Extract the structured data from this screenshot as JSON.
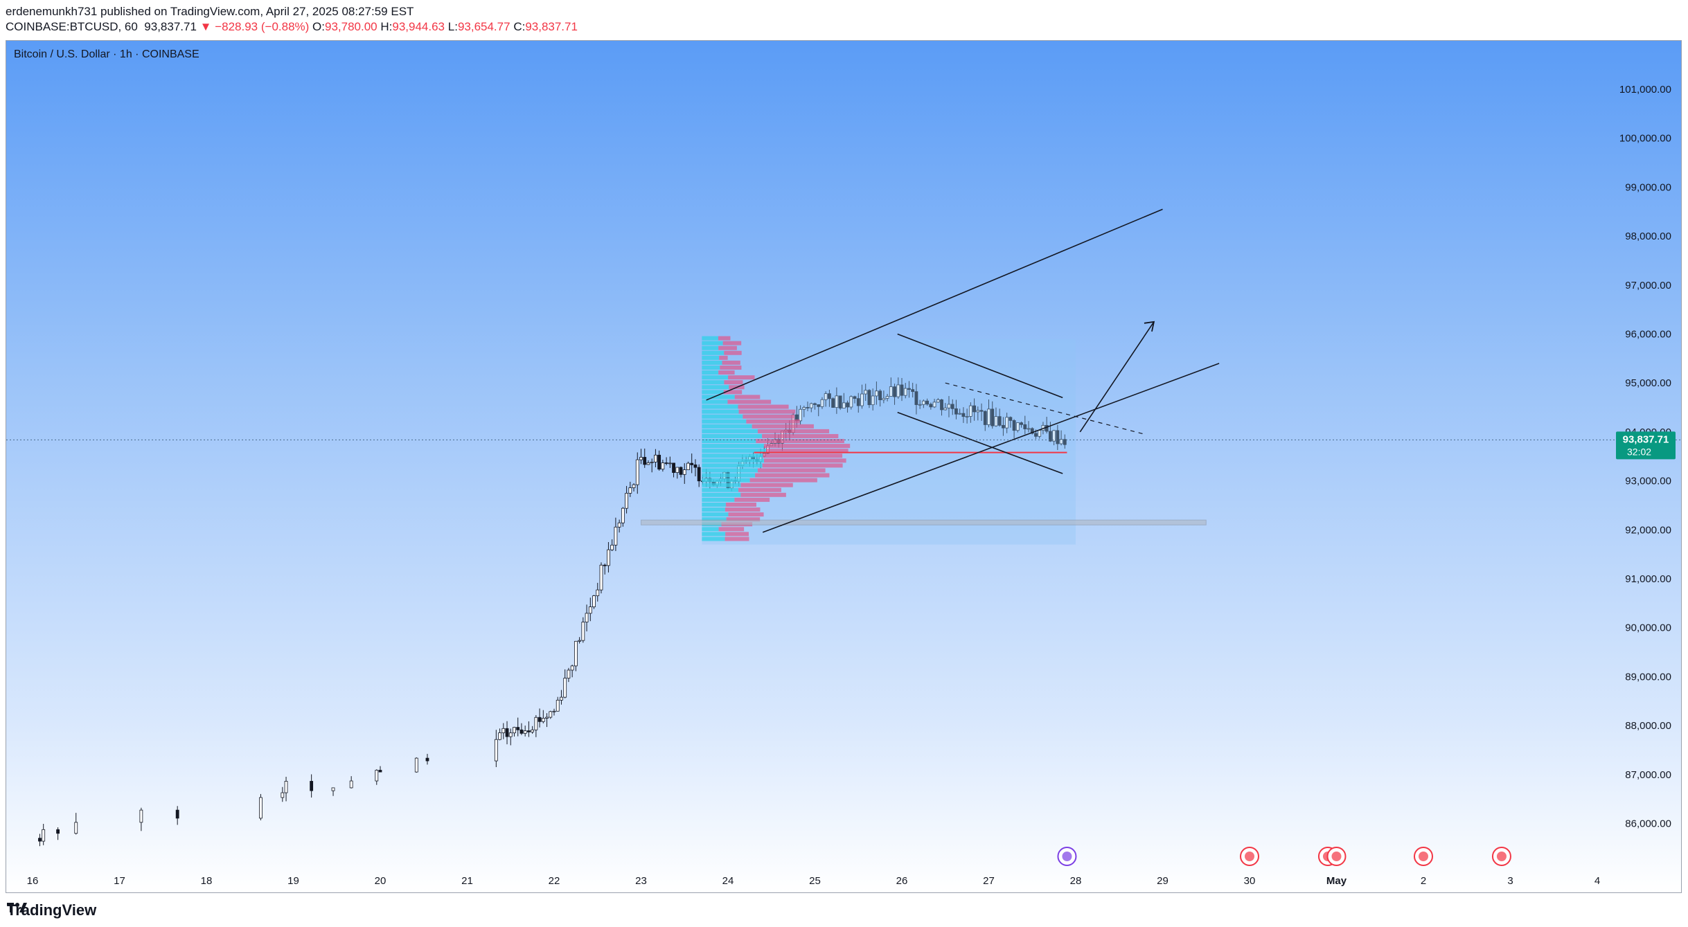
{
  "header": {
    "publisher_line": "erdenemunkh731 published on TradingView.com, April 27, 2025 08:27:59 EST",
    "symbol": "COINBASE:BTCUSD, 60",
    "last": "93,837.71",
    "change": "▼ −828.93 (−0.88%)",
    "o_label": "O:",
    "o": "93,780.00",
    "h_label": "H:",
    "h": "93,944.63",
    "l_label": "L:",
    "l": "93,654.77",
    "c_label": "C:",
    "c": "93,837.71"
  },
  "chart_title": "Bitcoin / U.S. Dollar · 1h · COINBASE",
  "price_label": {
    "price": "93,837.71",
    "countdown": "32:02"
  },
  "brand": "TradingView",
  "colors": {
    "up": "#0b8a7e",
    "down": "#f23645",
    "axis_text": "#131722",
    "price_tag": "#089981"
  },
  "chart_data": {
    "type": "candlestick",
    "y_ticks": [
      "101,000.00",
      "100,000.00",
      "99,000.00",
      "98,000.00",
      "97,000.00",
      "96,000.00",
      "95,000.00",
      "94,000.00",
      "93,000.00",
      "92,000.00",
      "91,000.00",
      "90,000.00",
      "89,000.00",
      "88,000.00",
      "87,000.00",
      "86,000.00"
    ],
    "y_tick_values": [
      101000,
      100000,
      99000,
      98000,
      97000,
      96000,
      95000,
      94000,
      93000,
      92000,
      91000,
      90000,
      89000,
      88000,
      87000,
      86000
    ],
    "x_ticks": [
      "16",
      "17",
      "18",
      "19",
      "20",
      "21",
      "22",
      "23",
      "24",
      "25",
      "26",
      "27",
      "28",
      "29",
      "30",
      "May",
      "2",
      "3",
      "4"
    ],
    "ylim": [
      85300,
      101500
    ],
    "last_price": 93837.71,
    "closes_by_day": [
      {
        "day": "16",
        "close": 85700
      },
      {
        "day": "21",
        "close": 87400
      },
      {
        "day": "22",
        "close": 88300
      },
      {
        "day": "23",
        "close": 93500
      },
      {
        "day": "24",
        "close": 93000
      },
      {
        "day": "25",
        "close": 94600
      },
      {
        "day": "26",
        "close": 94800
      },
      {
        "day": "27",
        "close": 94300
      },
      {
        "day": "27.9",
        "close": 93837.71
      }
    ],
    "annotations": {
      "upper_channel_line": {
        "from": {
          "day": 23.75,
          "price": 94650
        },
        "to": {
          "day": 29.0,
          "price": 98550
        }
      },
      "lower_channel_line": {
        "from": {
          "day": 24.4,
          "price": 91950
        },
        "to": {
          "day": 29.65,
          "price": 95400
        }
      },
      "flag_top": {
        "from": {
          "day": 25.95,
          "price": 96000
        },
        "to": {
          "day": 27.85,
          "price": 94700
        }
      },
      "flag_bottom": {
        "from": {
          "day": 25.95,
          "price": 94400
        },
        "to": {
          "day": 27.85,
          "price": 93150
        }
      },
      "target_arrow": {
        "from": {
          "day": 28.05,
          "price": 94000
        },
        "to": {
          "day": 28.9,
          "price": 96250
        }
      },
      "poc_level": 93580,
      "support_zone": [
        92100,
        92200
      ]
    }
  }
}
